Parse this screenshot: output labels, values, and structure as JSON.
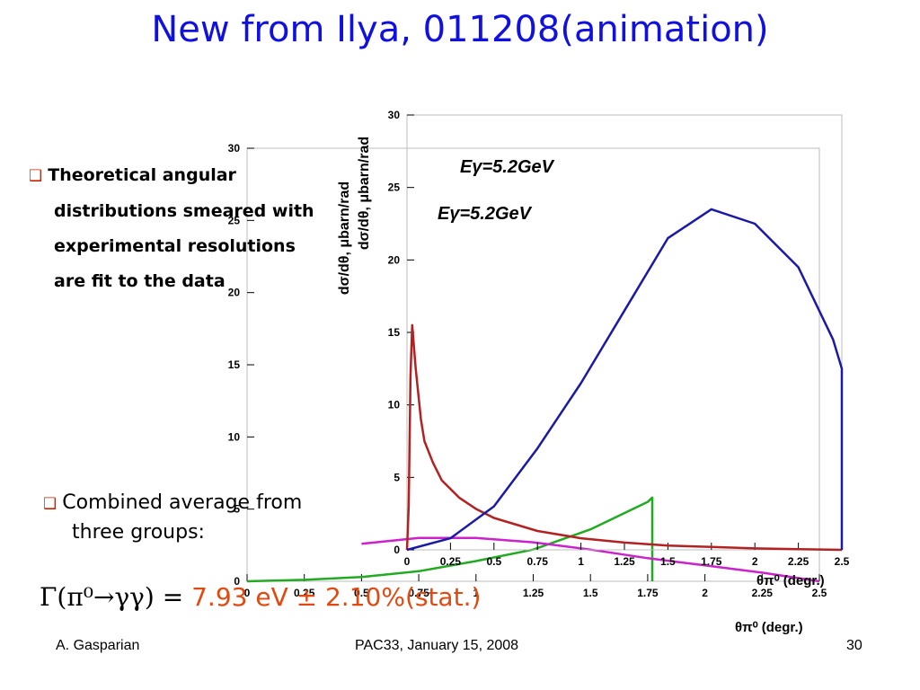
{
  "title": "New from Ilya, 011208(animation)",
  "bullets": [
    [
      "Theoretical angular",
      "distributions smeared with",
      "experimental resolutions",
      "are fit to the data"
    ]
  ],
  "combined": [
    "Combined average from",
    "three groups:"
  ],
  "formula": {
    "lhs": "Γ(π⁰→γγ) =",
    "value": "7.93 eV ± 2.10%(stat.)"
  },
  "footer": {
    "left": "A. Gasparian",
    "center": "PAC33, January 15, 2008",
    "right": "30"
  },
  "colors": {
    "title": "#1010e0",
    "red_curve": "#b22222",
    "blue_curve": "#1a1aa6",
    "green_curve": "#22aa22",
    "magenta_curve": "#cc22cc",
    "bullet": "#cc2200",
    "value": "#e04a10"
  },
  "chart_data": [
    {
      "type": "line",
      "ylabel": "dσ/dθ, μbarn/rad",
      "xlabel": "θπ⁰ (degr.)",
      "annotation": "Eγ=5.2GeV",
      "xlim": [
        0,
        2.5
      ],
      "ylim": [
        0,
        30
      ],
      "xticks": [
        "0",
        "0.25",
        "0.5",
        "0.75",
        "1",
        "1.25",
        "1.5",
        "1.75",
        "2",
        "2.25",
        "2.5"
      ],
      "yticks": [
        "0",
        "5",
        "10",
        "15",
        "20",
        "25",
        "30"
      ],
      "series": [
        {
          "color": "green",
          "x": [
            0,
            0.25,
            0.5,
            0.75,
            1.0,
            1.25,
            1.5,
            1.75,
            1.77,
            1.77
          ],
          "y": [
            0,
            0.1,
            0.3,
            0.7,
            1.4,
            2.2,
            3.6,
            5.5,
            5.8,
            0
          ]
        },
        {
          "color": "magenta",
          "x": [
            0.5,
            0.75,
            1.0,
            1.25,
            1.5,
            1.75,
            2.0,
            2.25,
            2.5
          ],
          "y": [
            2.6,
            3.0,
            3.0,
            2.7,
            2.2,
            1.6,
            1.1,
            0.6,
            0.0
          ]
        }
      ]
    },
    {
      "type": "line",
      "ylabel": "dσ/dθ, μbarn/rad",
      "xlabel": "θπ⁰ (degr.)",
      "annotation": "Eγ=5.2GeV",
      "xlim": [
        0,
        2.5
      ],
      "ylim": [
        0,
        30
      ],
      "xticks": [
        "0",
        "0.25",
        "0.5",
        "0.75",
        "1",
        "1.25",
        "1.5",
        "1.75",
        "2",
        "2.25",
        "2.5"
      ],
      "yticks": [
        "0",
        "5",
        "10",
        "15",
        "20",
        "25",
        "30"
      ],
      "series": [
        {
          "color": "red",
          "x": [
            0,
            0.01,
            0.02,
            0.03,
            0.05,
            0.08,
            0.1,
            0.15,
            0.2,
            0.3,
            0.4,
            0.5,
            0.75,
            1.0,
            1.25,
            1.5,
            1.75,
            2.0,
            2.25,
            2.5
          ],
          "y": [
            0,
            3,
            12,
            15.5,
            12.5,
            9,
            7.5,
            6,
            4.8,
            3.6,
            2.8,
            2.2,
            1.3,
            0.8,
            0.5,
            0.3,
            0.2,
            0.1,
            0.05,
            0.0
          ]
        },
        {
          "color": "blue",
          "x": [
            0,
            0.25,
            0.5,
            0.75,
            1.0,
            1.25,
            1.5,
            1.75,
            2.0,
            2.25,
            2.45,
            2.5,
            2.5
          ],
          "y": [
            0,
            0.8,
            3.0,
            7.0,
            11.5,
            16.5,
            21.5,
            23.5,
            22.5,
            19.5,
            14.5,
            12.5,
            0
          ]
        }
      ]
    }
  ]
}
